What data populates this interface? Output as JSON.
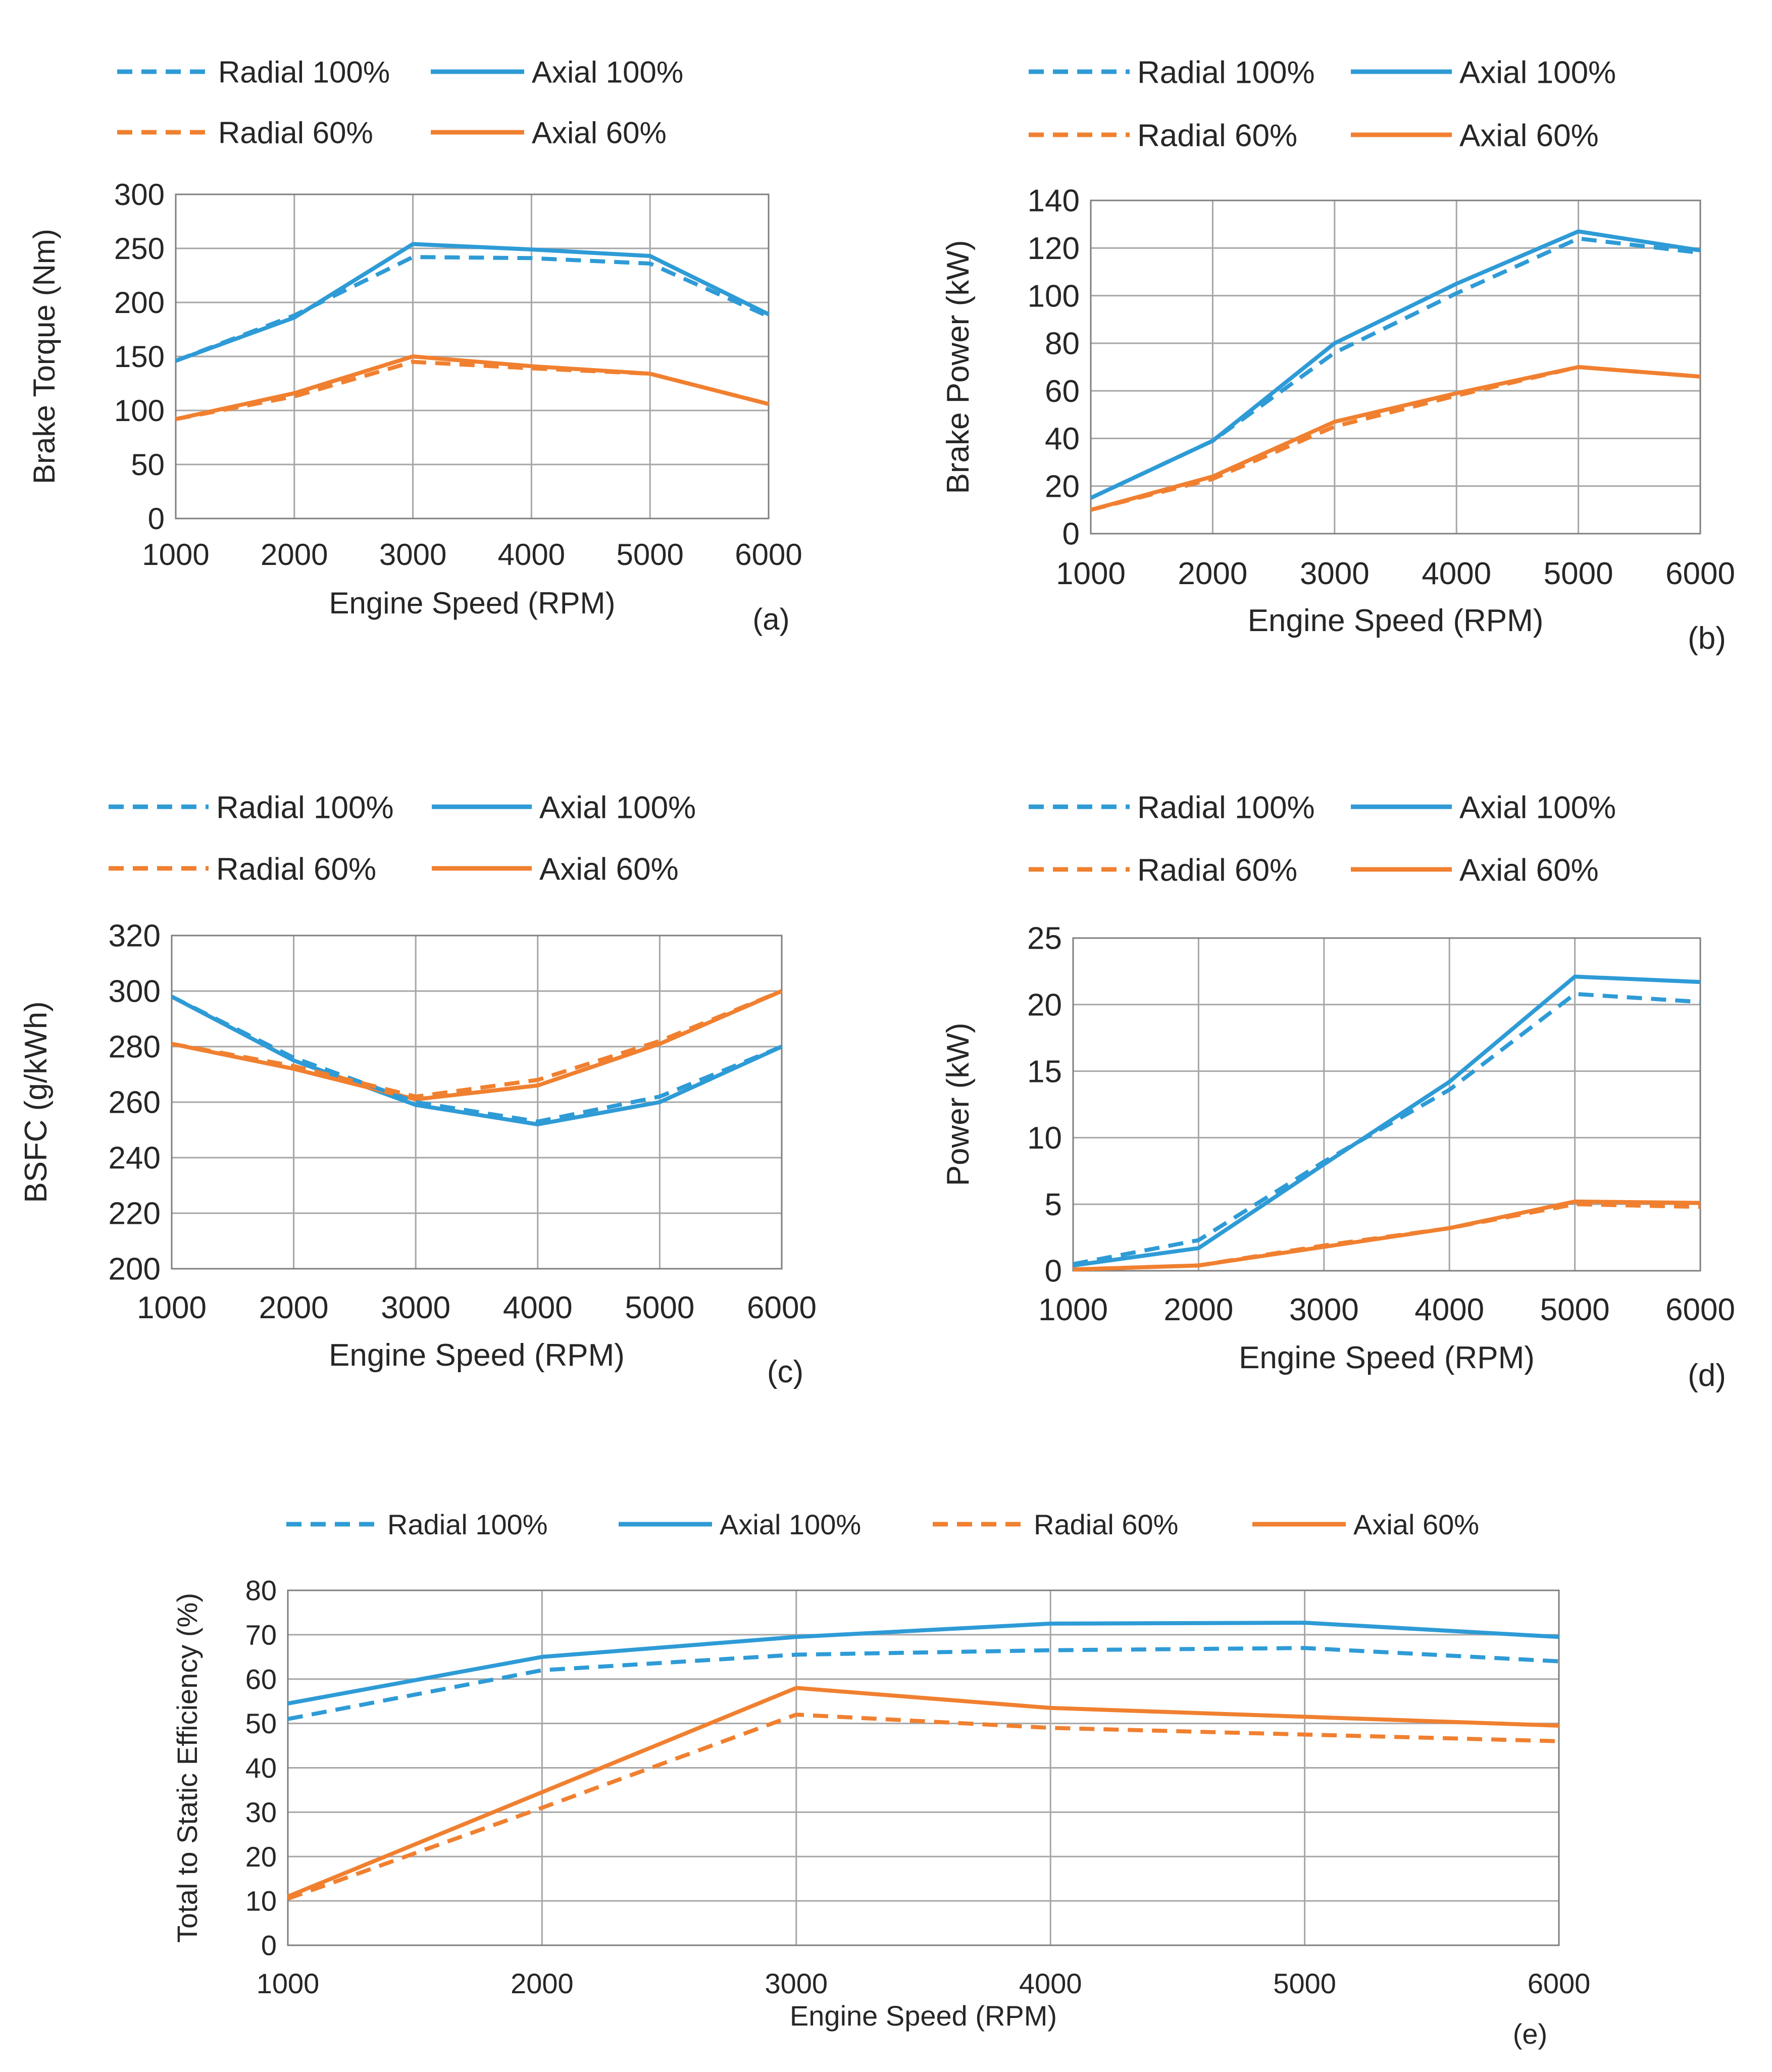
{
  "colors": {
    "blue": "#2e9bd6",
    "orange": "#f08030",
    "grid": "#a6a6a6",
    "axis": "#7f7f7f",
    "text": "#262626"
  },
  "chart_data": [
    {
      "id": "a",
      "type": "line",
      "panel_label": "(a)",
      "xlabel": "Engine Speed (RPM)",
      "ylabel": "Brake Torque (Nm)",
      "x": [
        1000,
        2000,
        3000,
        4000,
        5000,
        6000
      ],
      "xticks": [
        "1000",
        "2000",
        "3000",
        "4000",
        "5000",
        "6000"
      ],
      "ylim": [
        0,
        300
      ],
      "yticks": [
        "0",
        "50",
        "100",
        "150",
        "200",
        "250",
        "300"
      ],
      "legend_layout": "2x2",
      "series": [
        {
          "name": "Radial 100%",
          "color": "blue",
          "dash": true,
          "values": [
            146,
            188,
            242,
            241,
            236,
            187
          ]
        },
        {
          "name": "Axial 100%",
          "color": "blue",
          "dash": false,
          "values": [
            146,
            186,
            254,
            249,
            243,
            189
          ]
        },
        {
          "name": "Radial 60%",
          "color": "orange",
          "dash": true,
          "values": [
            92,
            113,
            145,
            139,
            134,
            106
          ]
        },
        {
          "name": "Axial 60%",
          "color": "orange",
          "dash": false,
          "values": [
            92,
            116,
            150,
            141,
            134,
            106
          ]
        }
      ]
    },
    {
      "id": "b",
      "type": "line",
      "panel_label": "(b)",
      "xlabel": "Engine Speed (RPM)",
      "ylabel": "Brake Power (kW)",
      "x": [
        1000,
        2000,
        3000,
        4000,
        5000,
        6000
      ],
      "xticks": [
        "1000",
        "2000",
        "3000",
        "4000",
        "5000",
        "6000"
      ],
      "ylim": [
        0,
        140
      ],
      "yticks": [
        "0",
        "20",
        "40",
        "60",
        "80",
        "100",
        "120",
        "140"
      ],
      "legend_layout": "2x2",
      "series": [
        {
          "name": "Radial 100%",
          "color": "blue",
          "dash": true,
          "values": [
            15,
            39,
            76,
            101,
            124,
            118
          ]
        },
        {
          "name": "Axial 100%",
          "color": "blue",
          "dash": false,
          "values": [
            15,
            39,
            80,
            105,
            127,
            119
          ]
        },
        {
          "name": "Radial 60%",
          "color": "orange",
          "dash": true,
          "values": [
            10,
            23,
            45,
            58,
            70,
            66
          ]
        },
        {
          "name": "Axial 60%",
          "color": "orange",
          "dash": false,
          "values": [
            10,
            24,
            47,
            59,
            70,
            66
          ]
        }
      ]
    },
    {
      "id": "c",
      "type": "line",
      "panel_label": "(c)",
      "xlabel": "Engine Speed (RPM)",
      "ylabel": "BSFC (g/kWh)",
      "x": [
        1000,
        2000,
        3000,
        4000,
        5000,
        6000
      ],
      "xticks": [
        "1000",
        "2000",
        "3000",
        "4000",
        "5000",
        "6000"
      ],
      "ylim": [
        200,
        320
      ],
      "yticks": [
        "200",
        "220",
        "240",
        "260",
        "280",
        "300",
        "320"
      ],
      "legend_layout": "2x2",
      "series": [
        {
          "name": "Radial 100%",
          "color": "blue",
          "dash": true,
          "values": [
            298,
            276,
            260,
            253,
            262,
            280
          ]
        },
        {
          "name": "Axial 100%",
          "color": "blue",
          "dash": false,
          "values": [
            298,
            275,
            259,
            252,
            260,
            280
          ]
        },
        {
          "name": "Radial 60%",
          "color": "orange",
          "dash": true,
          "values": [
            281,
            273,
            262,
            268,
            282,
            300
          ]
        },
        {
          "name": "Axial 60%",
          "color": "orange",
          "dash": false,
          "values": [
            281,
            272,
            261,
            266,
            281,
            300
          ]
        }
      ]
    },
    {
      "id": "d",
      "type": "line",
      "panel_label": "(d)",
      "xlabel": "Engine Speed (RPM)",
      "ylabel": "Power (kW)",
      "x": [
        1000,
        2000,
        3000,
        4000,
        5000,
        6000
      ],
      "xticks": [
        "1000",
        "2000",
        "3000",
        "4000",
        "5000",
        "6000"
      ],
      "ylim": [
        0,
        25
      ],
      "yticks": [
        "0",
        "5",
        "10",
        "15",
        "20",
        "25"
      ],
      "legend_layout": "2x2",
      "series": [
        {
          "name": "Radial 100%",
          "color": "blue",
          "dash": true,
          "values": [
            0.5,
            2.3,
            8.2,
            13.6,
            20.8,
            20.2
          ]
        },
        {
          "name": "Axial 100%",
          "color": "blue",
          "dash": false,
          "values": [
            0.4,
            1.7,
            8.0,
            14.2,
            22.1,
            21.7
          ]
        },
        {
          "name": "Radial 60%",
          "color": "orange",
          "dash": true,
          "values": [
            0.1,
            0.4,
            1.9,
            3.2,
            5.0,
            4.8
          ]
        },
        {
          "name": "Axial 60%",
          "color": "orange",
          "dash": false,
          "values": [
            0.1,
            0.4,
            1.8,
            3.2,
            5.2,
            5.1
          ]
        }
      ]
    },
    {
      "id": "e",
      "type": "line",
      "panel_label": "(e)",
      "xlabel": "Engine Speed (RPM)",
      "ylabel": "Total to Static Efficiency (%)",
      "x": [
        1000,
        2000,
        3000,
        4000,
        5000,
        6000
      ],
      "xticks": [
        "1000",
        "2000",
        "3000",
        "4000",
        "5000",
        "6000"
      ],
      "ylim": [
        0,
        80
      ],
      "yticks": [
        "0",
        "10",
        "20",
        "30",
        "40",
        "50",
        "60",
        "70",
        "80"
      ],
      "legend_layout": "1x4",
      "series": [
        {
          "name": "Radial 100%",
          "color": "blue",
          "dash": true,
          "values": [
            51,
            62,
            65.5,
            66.5,
            67,
            64
          ]
        },
        {
          "name": "Axial 100%",
          "color": "blue",
          "dash": false,
          "values": [
            54.5,
            65,
            69.5,
            72.5,
            72.7,
            69.5
          ]
        },
        {
          "name": "Radial 60%",
          "color": "orange",
          "dash": true,
          "values": [
            10.5,
            31,
            52,
            49,
            47.5,
            46
          ]
        },
        {
          "name": "Axial 60%",
          "color": "orange",
          "dash": false,
          "values": [
            11,
            34.5,
            58,
            53.5,
            51.5,
            49.5
          ]
        }
      ]
    }
  ]
}
